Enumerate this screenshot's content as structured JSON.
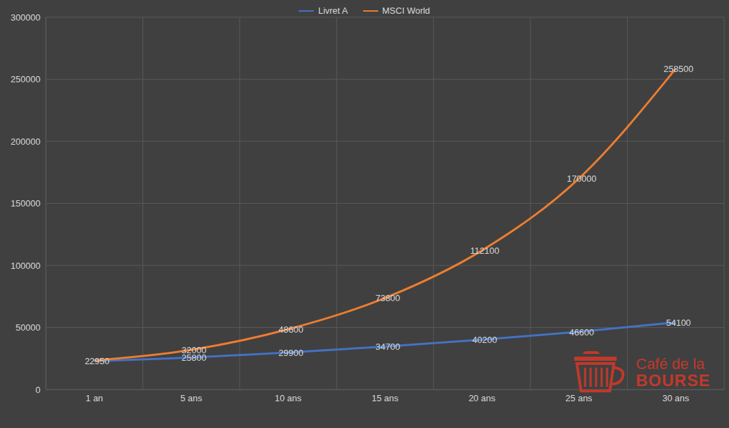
{
  "chart_data": {
    "type": "line",
    "categories": [
      "1 an",
      "5 ans",
      "10 ans",
      "15 ans",
      "20 ans",
      "25 ans",
      "30 ans"
    ],
    "series": [
      {
        "name": "Livret A",
        "color": "#4472c4",
        "values": [
          22950,
          25800,
          29900,
          34700,
          40200,
          46600,
          54100
        ]
      },
      {
        "name": "MSCI World",
        "color": "#ed7d31",
        "values": [
          23500,
          32000,
          48600,
          73800,
          112100,
          170000,
          258500
        ],
        "value_labels": [
          null,
          "32000",
          "48600",
          "73800",
          "112100",
          "170000",
          "258500"
        ]
      }
    ],
    "ylim": [
      0,
      300000
    ],
    "yticks": [
      0,
      50000,
      100000,
      150000,
      200000,
      250000,
      300000
    ],
    "grid": true,
    "legend": "top",
    "data_labels": true,
    "annotations": [
      "Café de la",
      "BOURSE"
    ]
  }
}
